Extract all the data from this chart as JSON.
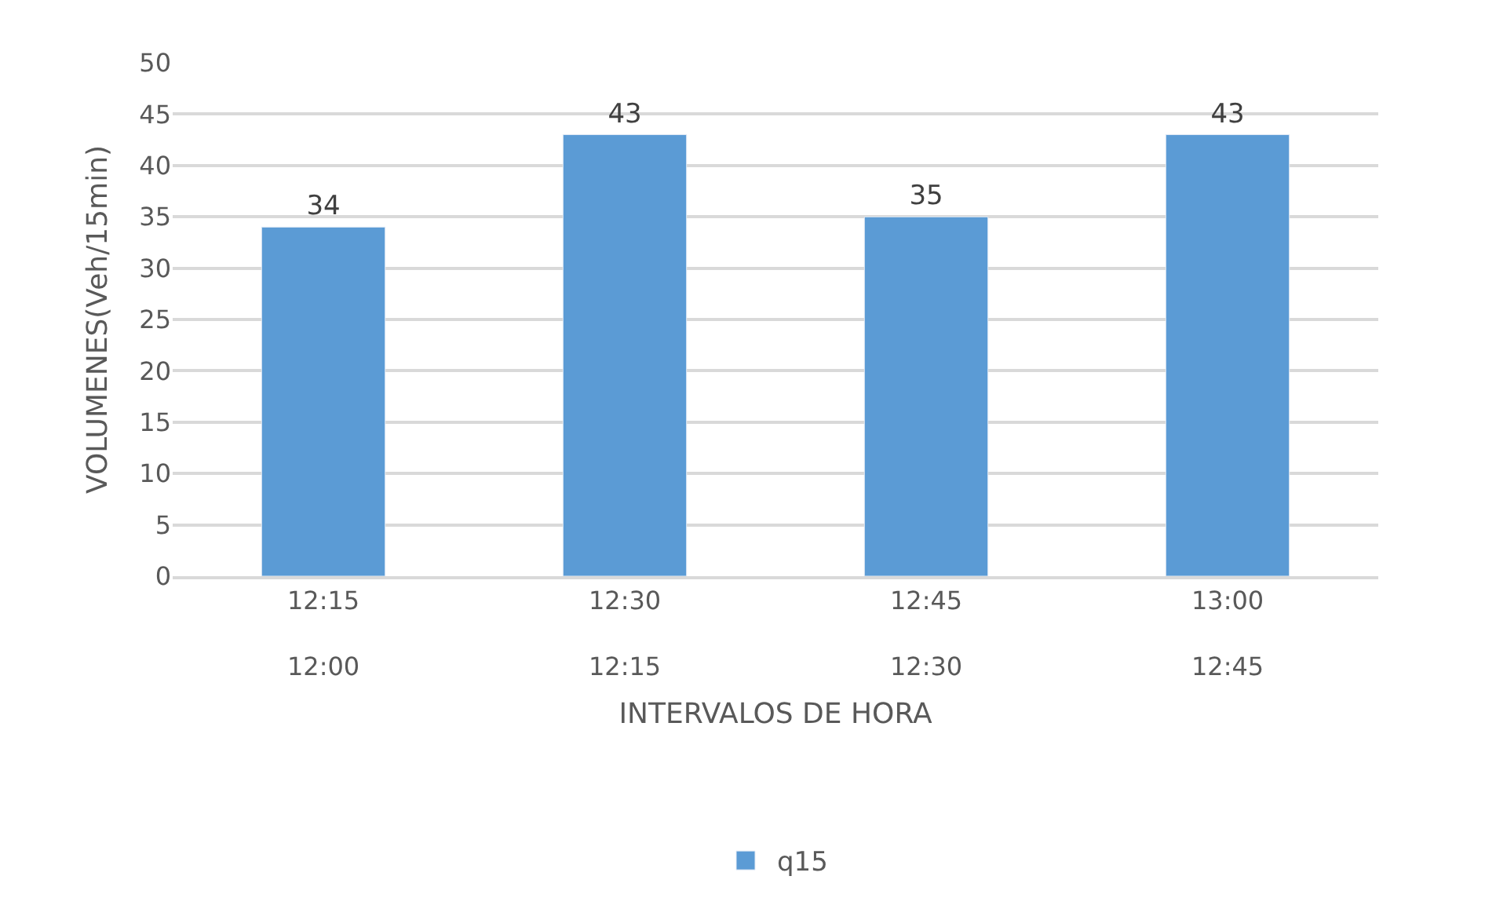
{
  "chart_data": {
    "type": "bar",
    "xlabel": "INTERVALOS DE HORA",
    "ylabel": "VOLUMENES(Veh/15min)",
    "categories": [
      "12:15\n12:00",
      "12:30\n12:15",
      "12:45\n12:30",
      "13:00\n12:45"
    ],
    "series": [
      {
        "name": "q15",
        "color": "#5b9bd5",
        "values": [
          34,
          43,
          35,
          43
        ]
      }
    ],
    "ylim": [
      0,
      50
    ],
    "yticks": [
      0,
      5,
      10,
      15,
      20,
      25,
      30,
      35,
      40,
      45,
      50
    ],
    "grid": "y",
    "legend": "bottom",
    "data_labels": true
  }
}
